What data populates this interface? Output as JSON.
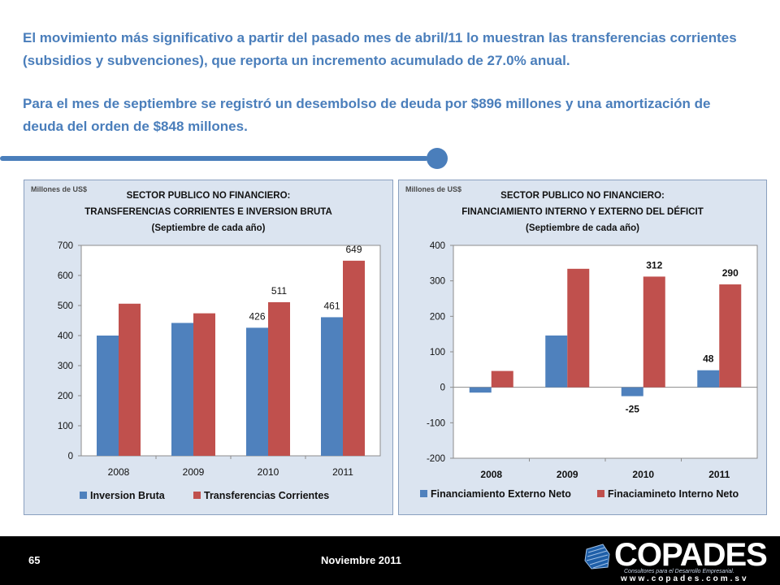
{
  "paragraphs": {
    "p1": "El movimiento más significativo a partir del pasado mes de abril/11 lo muestran las transferencias corrientes (subsidios y subvenciones), que reporta un incremento acumulado de 27.0% anual.",
    "p2": "Para el mes de septiembre se registró un desembolso de deuda por $896 millones y una amortización de deuda del orden de $848 millones."
  },
  "footer": {
    "page_number": "65",
    "date": "Noviembre 2011",
    "logo_name": "COPADES",
    "logo_tagline": "Consultores para el Desarrollo Empresarial.",
    "logo_url": "www.copades.com.sv"
  },
  "colors": {
    "series_blue": "#4f81bd",
    "series_red": "#c0504d",
    "accent": "#4a7ebb"
  },
  "chart_data": [
    {
      "type": "bar",
      "units_label": "Millones de US$",
      "title_lines": [
        "SECTOR PUBLICO NO FINANCIERO:",
        "TRANSFERENCIAS CORRIENTES E INVERSION BRUTA",
        "(Septiembre de cada año)"
      ],
      "categories": [
        "2008",
        "2009",
        "2010",
        "2011"
      ],
      "ylim": [
        0,
        700
      ],
      "yticks": [
        0,
        100,
        200,
        300,
        400,
        500,
        600,
        700
      ],
      "series": [
        {
          "name": "Inversion Bruta",
          "color": "#4f81bd",
          "values": [
            400,
            442,
            426,
            461
          ],
          "labels": [
            "",
            "",
            "426",
            "461"
          ]
        },
        {
          "name": "Transferencias Corrientes",
          "color": "#c0504d",
          "values": [
            506,
            474,
            511,
            649
          ],
          "labels": [
            "",
            "",
            "511",
            "649"
          ]
        }
      ],
      "legend_position": "bottom"
    },
    {
      "type": "bar",
      "units_label": "Millones de US$",
      "title_lines": [
        "SECTOR PUBLICO NO FINANCIERO:",
        "FINANCIAMIENTO INTERNO Y EXTERNO DEL DÉFICIT",
        "(Septiembre de cada año)"
      ],
      "categories": [
        "2008",
        "2009",
        "2010",
        "2011"
      ],
      "ylim": [
        -200,
        400
      ],
      "yticks": [
        -200,
        -100,
        0,
        100,
        200,
        300,
        400
      ],
      "series": [
        {
          "name": "Financiamiento Externo Neto",
          "color": "#4f81bd",
          "values": [
            -15,
            146,
            -25,
            48
          ],
          "labels": [
            "",
            "",
            "-25",
            "48"
          ]
        },
        {
          "name": "Finaciamineto Interno Neto",
          "color": "#c0504d",
          "values": [
            46,
            334,
            312,
            290
          ],
          "labels": [
            "",
            "",
            "312",
            "290"
          ]
        }
      ],
      "legend_position": "bottom"
    }
  ]
}
